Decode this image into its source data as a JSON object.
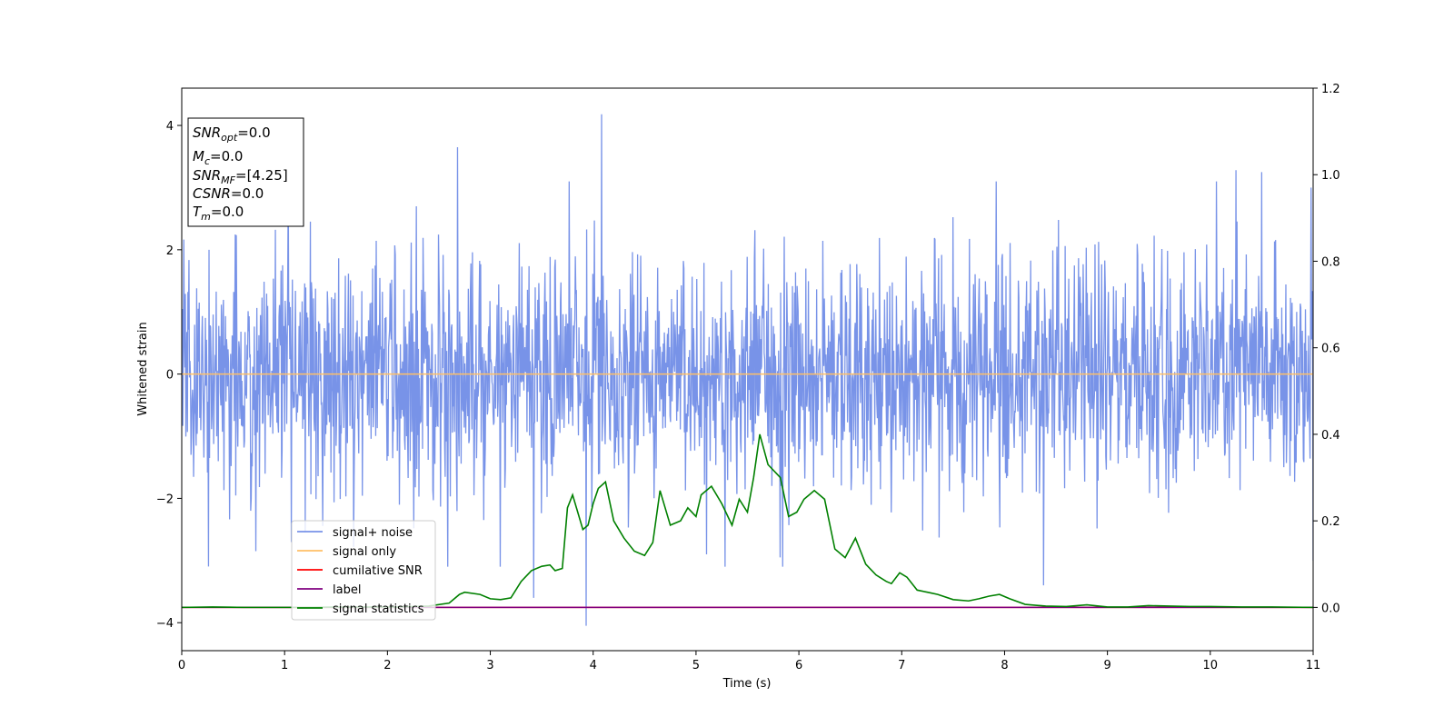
{
  "chart_data": {
    "type": "line",
    "title": "",
    "xlabel": "Time (s)",
    "ylabel": "Whitened strain",
    "xlim": [
      0,
      11
    ],
    "ylim": [
      -4.45,
      4.6
    ],
    "y2lim": [
      -0.1,
      1.2
    ],
    "x_ticks": [
      "0",
      "1",
      "2",
      "3",
      "4",
      "5",
      "6",
      "7",
      "8",
      "9",
      "10",
      "11"
    ],
    "y_ticks": [
      "−4",
      "−2",
      "0",
      "2",
      "4"
    ],
    "y2_ticks": [
      "0.0",
      "0.2",
      "0.4",
      "0.6",
      "0.8",
      "1.0",
      "1.2"
    ],
    "grid": false,
    "legend_position": "lower-left",
    "info_box": {
      "lines": [
        {
          "base": "SNR",
          "sub": "opt",
          "rest": "=0.0"
        },
        {
          "base": "M",
          "sub": "c",
          "rest": "=0.0"
        },
        {
          "base": "SNR",
          "sub": "MF",
          "rest": "=[4.25]"
        },
        {
          "base": "CSNR",
          "sub": "",
          "rest": "=0.0"
        },
        {
          "base": "T",
          "sub": "m",
          "rest": "=0.0"
        }
      ]
    },
    "series": [
      {
        "name": "signal+ noise",
        "color": "#7893e8",
        "axis": "left",
        "noise_model": {
          "std": 0.95,
          "samples": 2200,
          "seed": 7
        },
        "peaks": [
          {
            "x": 0.72,
            "y": -2.85
          },
          {
            "x": 1.2,
            "y": -2.55
          },
          {
            "x": 2.28,
            "y": 2.7
          },
          {
            "x": 2.68,
            "y": 3.65
          },
          {
            "x": 3.42,
            "y": -3.6
          },
          {
            "x": 3.93,
            "y": -4.05
          },
          {
            "x": 4.08,
            "y": 4.18
          },
          {
            "x": 5.1,
            "y": -2.9
          },
          {
            "x": 5.82,
            "y": -2.95
          },
          {
            "x": 8.38,
            "y": -3.4
          },
          {
            "x": 10.25,
            "y": 3.28
          },
          {
            "x": 10.5,
            "y": 3.25
          },
          {
            "x": 10.98,
            "y": 3.0
          },
          {
            "x": 11.0,
            "y": -3.0
          }
        ]
      },
      {
        "name": "signal only",
        "color": "#ffbf66",
        "axis": "left",
        "x": [
          0,
          11
        ],
        "y": [
          0,
          0
        ]
      },
      {
        "name": "cumilative SNR",
        "color": "#ff0000",
        "axis": "right",
        "x": [
          0,
          11
        ],
        "y": [
          0,
          0
        ]
      },
      {
        "name": "label",
        "color": "#800080",
        "axis": "right",
        "x": [
          0,
          11
        ],
        "y": [
          0,
          0
        ]
      },
      {
        "name": "signal statistics",
        "color": "#008000",
        "axis": "right",
        "x": [
          0,
          0.3,
          0.6,
          0.9,
          1.2,
          1.5,
          1.8,
          2.1,
          2.4,
          2.6,
          2.7,
          2.75,
          2.9,
          3.0,
          3.1,
          3.2,
          3.3,
          3.4,
          3.5,
          3.58,
          3.63,
          3.7,
          3.75,
          3.8,
          3.9,
          3.95,
          4.0,
          4.05,
          4.12,
          4.2,
          4.3,
          4.4,
          4.5,
          4.58,
          4.65,
          4.75,
          4.85,
          4.92,
          5.0,
          5.05,
          5.15,
          5.25,
          5.35,
          5.42,
          5.5,
          5.56,
          5.62,
          5.7,
          5.82,
          5.9,
          5.98,
          6.05,
          6.15,
          6.25,
          6.35,
          6.45,
          6.55,
          6.65,
          6.75,
          6.85,
          6.9,
          6.98,
          7.05,
          7.15,
          7.25,
          7.35,
          7.5,
          7.65,
          7.75,
          7.85,
          7.95,
          8.05,
          8.2,
          8.4,
          8.6,
          8.8,
          9.0,
          9.2,
          9.4,
          9.6,
          9.8,
          10.0,
          10.3,
          10.6,
          11.0
        ],
        "y": [
          0.0,
          0.001,
          0.0,
          0.0,
          0.0,
          0.001,
          0.001,
          0.001,
          0.003,
          0.01,
          0.03,
          0.035,
          0.03,
          0.02,
          0.018,
          0.022,
          0.06,
          0.085,
          0.095,
          0.098,
          0.085,
          0.09,
          0.23,
          0.26,
          0.18,
          0.19,
          0.24,
          0.275,
          0.29,
          0.2,
          0.16,
          0.13,
          0.12,
          0.15,
          0.27,
          0.19,
          0.2,
          0.23,
          0.21,
          0.26,
          0.28,
          0.24,
          0.19,
          0.25,
          0.22,
          0.3,
          0.4,
          0.33,
          0.3,
          0.21,
          0.22,
          0.25,
          0.27,
          0.25,
          0.135,
          0.115,
          0.16,
          0.1,
          0.075,
          0.06,
          0.055,
          0.08,
          0.07,
          0.04,
          0.035,
          0.03,
          0.018,
          0.015,
          0.02,
          0.026,
          0.03,
          0.02,
          0.007,
          0.003,
          0.002,
          0.006,
          0.001,
          0.001,
          0.004,
          0.003,
          0.002,
          0.002,
          0.001,
          0.001,
          0.0
        ]
      }
    ]
  }
}
